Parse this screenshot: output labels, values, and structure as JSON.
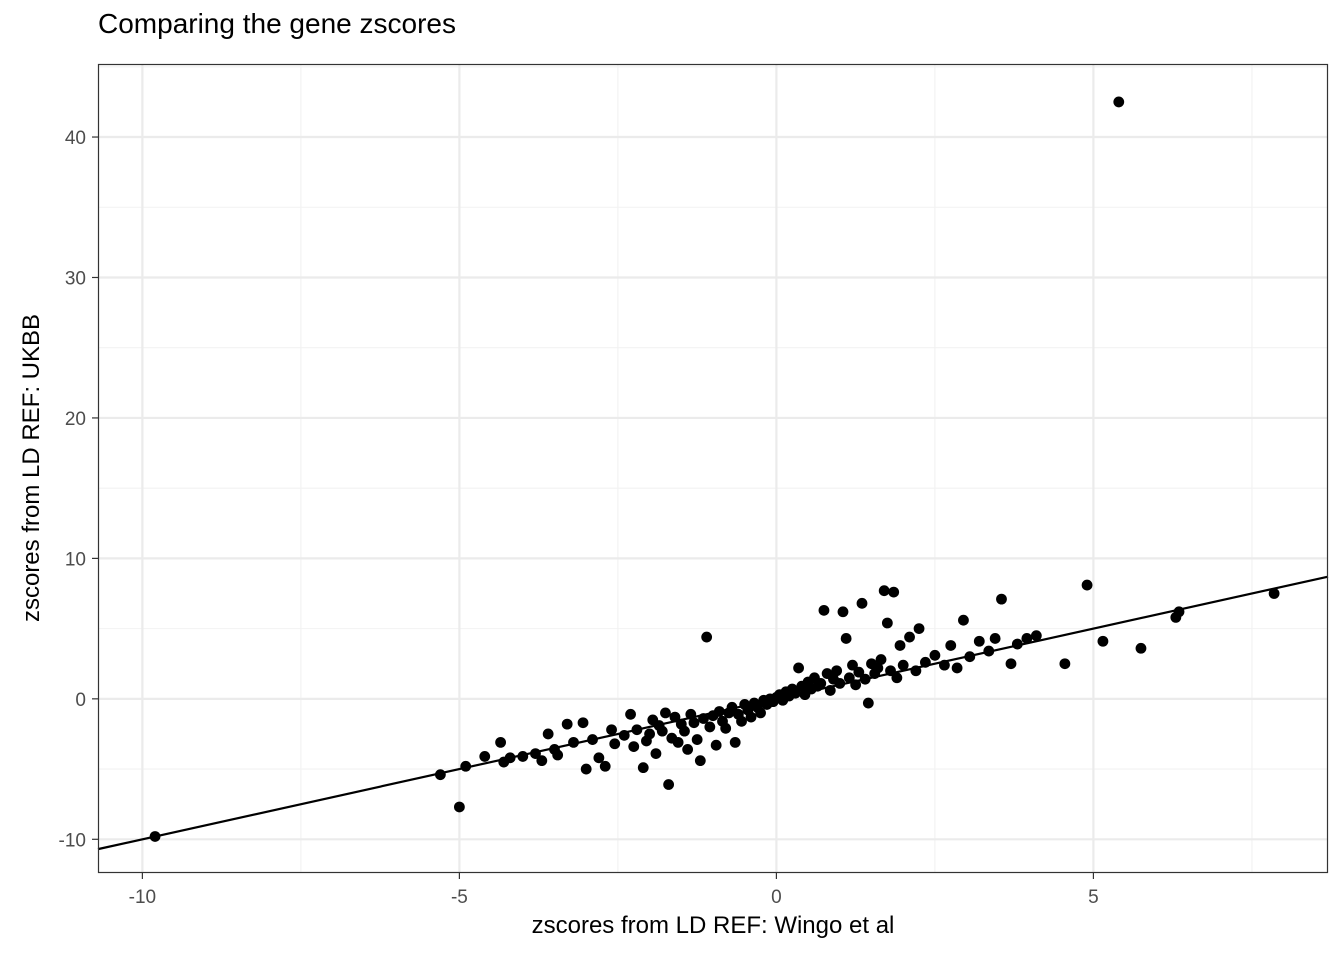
{
  "chart_data": {
    "type": "scatter",
    "title": "Comparing the gene zscores",
    "xlabel": "zscores from LD REF: Wingo et al",
    "ylabel": "zscores from LD REF: UKBB",
    "xlim": [
      -10.7,
      8.7
    ],
    "ylim": [
      -12.4,
      45.2
    ],
    "xticks": [
      -10,
      -5,
      0,
      5
    ],
    "xtick_labels": [
      "-10",
      "-5",
      "0",
      "5"
    ],
    "yticks": [
      -10,
      0,
      10,
      20,
      30,
      40
    ],
    "ytick_labels": [
      "-10",
      "0",
      "10",
      "20",
      "30",
      "40"
    ],
    "grid": true,
    "fit_line": {
      "slope": 1.0,
      "intercept": 0.0
    },
    "points": [
      [
        -9.8,
        -9.8
      ],
      [
        -5.3,
        -5.4
      ],
      [
        -5.0,
        -7.7
      ],
      [
        -4.9,
        -4.8
      ],
      [
        -4.6,
        -4.1
      ],
      [
        -4.35,
        -3.1
      ],
      [
        -4.3,
        -4.5
      ],
      [
        -4.2,
        -4.2
      ],
      [
        -4.0,
        -4.1
      ],
      [
        -3.8,
        -3.9
      ],
      [
        -3.7,
        -4.4
      ],
      [
        -3.6,
        -2.5
      ],
      [
        -3.5,
        -3.6
      ],
      [
        -3.45,
        -4.0
      ],
      [
        -3.3,
        -1.8
      ],
      [
        -3.2,
        -3.1
      ],
      [
        -3.05,
        -1.7
      ],
      [
        -3.0,
        -5.0
      ],
      [
        -2.9,
        -2.9
      ],
      [
        -2.8,
        -4.2
      ],
      [
        -2.7,
        -4.8
      ],
      [
        -2.6,
        -2.2
      ],
      [
        -2.55,
        -3.2
      ],
      [
        -2.4,
        -2.6
      ],
      [
        -2.3,
        -1.1
      ],
      [
        -2.25,
        -3.4
      ],
      [
        -2.2,
        -2.2
      ],
      [
        -2.1,
        -4.9
      ],
      [
        -2.05,
        -3.0
      ],
      [
        -2.0,
        -2.5
      ],
      [
        -1.95,
        -1.5
      ],
      [
        -1.9,
        -3.9
      ],
      [
        -1.85,
        -1.9
      ],
      [
        -1.8,
        -2.3
      ],
      [
        -1.75,
        -1.0
      ],
      [
        -1.7,
        -6.1
      ],
      [
        -1.65,
        -2.8
      ],
      [
        -1.6,
        -1.3
      ],
      [
        -1.55,
        -3.1
      ],
      [
        -1.5,
        -1.8
      ],
      [
        -1.45,
        -2.3
      ],
      [
        -1.4,
        -3.6
      ],
      [
        -1.35,
        -1.1
      ],
      [
        -1.3,
        -1.7
      ],
      [
        -1.25,
        -2.9
      ],
      [
        -1.2,
        -4.4
      ],
      [
        -1.15,
        -1.4
      ],
      [
        -1.1,
        4.4
      ],
      [
        -1.05,
        -2.0
      ],
      [
        -1.0,
        -1.2
      ],
      [
        -0.95,
        -3.3
      ],
      [
        -0.9,
        -0.9
      ],
      [
        -0.85,
        -1.6
      ],
      [
        -0.8,
        -2.1
      ],
      [
        -0.75,
        -1.0
      ],
      [
        -0.7,
        -0.6
      ],
      [
        -0.65,
        -3.1
      ],
      [
        -0.6,
        -1.1
      ],
      [
        -0.55,
        -1.6
      ],
      [
        -0.5,
        -0.4
      ],
      [
        -0.45,
        -0.8
      ],
      [
        -0.4,
        -1.3
      ],
      [
        -0.35,
        -0.3
      ],
      [
        -0.3,
        -0.6
      ],
      [
        -0.25,
        -1.0
      ],
      [
        -0.2,
        -0.1
      ],
      [
        -0.15,
        -0.4
      ],
      [
        -0.1,
        0.0
      ],
      [
        -0.05,
        -0.2
      ],
      [
        0.0,
        0.1
      ],
      [
        0.05,
        0.3
      ],
      [
        0.1,
        -0.1
      ],
      [
        0.15,
        0.5
      ],
      [
        0.2,
        0.2
      ],
      [
        0.25,
        0.7
      ],
      [
        0.3,
        0.4
      ],
      [
        0.35,
        2.2
      ],
      [
        0.4,
        0.9
      ],
      [
        0.45,
        0.3
      ],
      [
        0.5,
        1.2
      ],
      [
        0.55,
        0.7
      ],
      [
        0.6,
        1.5
      ],
      [
        0.65,
        0.9
      ],
      [
        0.7,
        1.1
      ],
      [
        0.75,
        6.3
      ],
      [
        0.8,
        1.8
      ],
      [
        0.85,
        0.6
      ],
      [
        0.9,
        1.4
      ],
      [
        0.95,
        2.0
      ],
      [
        1.0,
        1.1
      ],
      [
        1.05,
        6.2
      ],
      [
        1.1,
        4.3
      ],
      [
        1.15,
        1.5
      ],
      [
        1.2,
        2.4
      ],
      [
        1.25,
        1.0
      ],
      [
        1.3,
        1.9
      ],
      [
        1.35,
        6.8
      ],
      [
        1.4,
        1.4
      ],
      [
        1.45,
        -0.3
      ],
      [
        1.5,
        2.5
      ],
      [
        1.55,
        1.8
      ],
      [
        1.6,
        2.2
      ],
      [
        1.65,
        2.8
      ],
      [
        1.7,
        7.7
      ],
      [
        1.75,
        5.4
      ],
      [
        1.8,
        2.0
      ],
      [
        1.85,
        7.6
      ],
      [
        1.9,
        1.5
      ],
      [
        1.95,
        3.8
      ],
      [
        2.0,
        2.4
      ],
      [
        2.1,
        4.4
      ],
      [
        2.2,
        2.0
      ],
      [
        2.25,
        5.0
      ],
      [
        2.35,
        2.6
      ],
      [
        2.5,
        3.1
      ],
      [
        2.65,
        2.4
      ],
      [
        2.75,
        3.8
      ],
      [
        2.85,
        2.2
      ],
      [
        2.95,
        5.6
      ],
      [
        3.05,
        3.0
      ],
      [
        3.2,
        4.1
      ],
      [
        3.35,
        3.4
      ],
      [
        3.45,
        4.3
      ],
      [
        3.55,
        7.1
      ],
      [
        3.7,
        2.5
      ],
      [
        3.8,
        3.9
      ],
      [
        3.95,
        4.3
      ],
      [
        4.1,
        4.5
      ],
      [
        4.55,
        2.5
      ],
      [
        4.9,
        8.1
      ],
      [
        5.15,
        4.1
      ],
      [
        5.4,
        42.5
      ],
      [
        5.75,
        3.6
      ],
      [
        6.3,
        5.8
      ],
      [
        6.35,
        6.2
      ],
      [
        7.85,
        7.5
      ]
    ]
  }
}
